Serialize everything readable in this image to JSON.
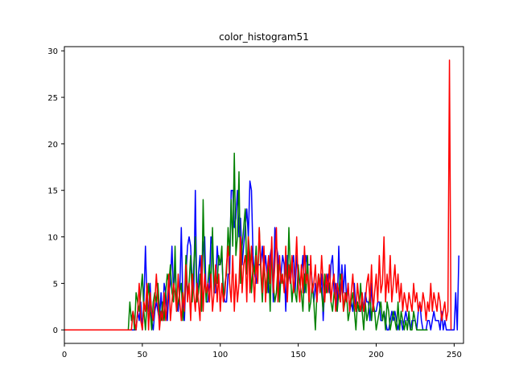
{
  "chart_data": {
    "type": "line",
    "title": "color_histogram51",
    "xlabel": "",
    "ylabel": "",
    "xlim": [
      0,
      256
    ],
    "ylim": [
      -1.45,
      30.45
    ],
    "xticks": [
      0,
      50,
      100,
      150,
      200,
      250
    ],
    "yticks": [
      0,
      5,
      10,
      15,
      20,
      25,
      30
    ],
    "grid": false,
    "legend": "none",
    "x_start": 0,
    "series": [
      {
        "color": "#0000ff",
        "values": [
          0,
          0,
          0,
          0,
          0,
          0,
          0,
          0,
          0,
          0,
          0,
          0,
          0,
          0,
          0,
          0,
          0,
          0,
          0,
          0,
          0,
          0,
          0,
          0,
          0,
          0,
          0,
          0,
          0,
          0,
          0,
          0,
          0,
          0,
          0,
          0,
          0,
          0,
          0,
          0,
          0,
          0,
          0,
          0,
          0,
          0,
          0,
          2,
          1,
          3,
          0,
          3,
          9,
          3,
          2,
          5,
          1,
          0,
          2,
          3,
          2,
          1,
          4,
          1,
          5,
          4,
          1,
          4,
          5,
          9,
          4,
          7,
          3,
          2,
          4,
          11,
          3,
          1,
          6,
          9,
          10,
          9,
          5,
          4,
          15,
          3,
          6,
          8,
          4,
          9,
          10,
          3,
          3,
          5,
          10,
          9,
          4,
          4,
          9,
          7,
          7,
          8,
          4,
          3,
          3,
          6,
          6,
          15,
          15,
          11,
          12,
          15,
          10,
          12,
          7,
          9,
          11,
          13,
          10,
          16,
          15,
          8,
          6,
          5,
          7,
          7,
          7,
          9,
          6,
          8,
          6,
          4,
          8,
          9,
          3,
          11,
          9,
          8,
          4,
          6,
          8,
          7,
          2,
          8,
          6,
          5,
          7,
          8,
          4,
          8,
          6,
          5,
          6,
          8,
          4,
          8,
          7,
          7,
          7,
          5,
          3,
          5,
          3,
          6,
          4,
          6,
          1,
          5,
          4,
          6,
          4,
          7,
          8,
          4,
          5,
          2,
          9,
          3,
          7,
          4,
          7,
          3,
          5,
          2,
          3,
          2,
          5,
          2,
          3,
          2,
          2,
          3,
          2,
          4,
          3,
          3,
          1,
          5,
          2,
          2,
          2,
          3,
          3,
          1,
          1,
          2,
          1,
          0,
          0,
          1,
          2,
          1,
          2,
          1,
          0,
          1,
          1,
          0,
          1,
          2,
          1,
          1,
          0,
          1,
          1,
          1,
          0,
          2,
          3,
          1,
          0,
          0,
          0,
          1,
          1,
          0,
          1,
          2,
          1,
          1,
          1,
          0,
          2,
          0,
          1,
          0,
          0,
          0,
          0,
          0,
          0,
          4,
          0,
          8
        ]
      },
      {
        "color": "#008000",
        "values": [
          0,
          0,
          0,
          0,
          0,
          0,
          0,
          0,
          0,
          0,
          0,
          0,
          0,
          0,
          0,
          0,
          0,
          0,
          0,
          0,
          0,
          0,
          0,
          0,
          0,
          0,
          0,
          0,
          0,
          0,
          0,
          0,
          0,
          0,
          0,
          0,
          0,
          0,
          0,
          0,
          0,
          0,
          3,
          1,
          2,
          0,
          4,
          3,
          2,
          4,
          6,
          2,
          0,
          3,
          5,
          2,
          0,
          3,
          4,
          3,
          5,
          2,
          1,
          3,
          1,
          4,
          6,
          5,
          7,
          4,
          3,
          9,
          2,
          3,
          4,
          5,
          1,
          3,
          8,
          4,
          5,
          8,
          3,
          7,
          10,
          3,
          4,
          6,
          2,
          14,
          6,
          3,
          5,
          7,
          5,
          11,
          4,
          6,
          5,
          8,
          7,
          9,
          3,
          5,
          6,
          11,
          8,
          14,
          9,
          19,
          8,
          10,
          17,
          5,
          9,
          11,
          13,
          6,
          10,
          8,
          4,
          7,
          6,
          9,
          5,
          11,
          6,
          3,
          7,
          5,
          4,
          7,
          2,
          9,
          5,
          3,
          4,
          7,
          3,
          6,
          5,
          5,
          7,
          4,
          11,
          6,
          3,
          5,
          4,
          3,
          7,
          5,
          4,
          2,
          6,
          4,
          8,
          2,
          3,
          5,
          3,
          0,
          4,
          6,
          5,
          4,
          2,
          6,
          4,
          5,
          5,
          3,
          2,
          4,
          3,
          2,
          4,
          6,
          5,
          2,
          3,
          4,
          1,
          2,
          3,
          4,
          2,
          0,
          3,
          2,
          5,
          2,
          0,
          3,
          1,
          2,
          4,
          1,
          3,
          2,
          0,
          1,
          2,
          3,
          1,
          2,
          0,
          3,
          2,
          0,
          1,
          2,
          1,
          0,
          3,
          0,
          2,
          1,
          0,
          1,
          0,
          2,
          0,
          0,
          2,
          1,
          0,
          0,
          0,
          0,
          0,
          0,
          0,
          0
        ]
      },
      {
        "color": "#ff0000",
        "values": [
          0,
          0,
          0,
          0,
          0,
          0,
          0,
          0,
          0,
          0,
          0,
          0,
          0,
          0,
          0,
          0,
          0,
          0,
          0,
          0,
          0,
          0,
          0,
          0,
          0,
          0,
          0,
          0,
          0,
          0,
          0,
          0,
          0,
          0,
          0,
          0,
          0,
          0,
          0,
          0,
          0,
          0,
          0,
          0,
          2,
          1,
          0,
          2,
          5,
          1,
          0,
          3,
          2,
          5,
          0,
          4,
          2,
          1,
          3,
          6,
          3,
          0,
          2,
          1,
          4,
          1,
          3,
          6,
          1,
          3,
          5,
          4,
          2,
          6,
          3,
          1,
          4,
          2,
          7,
          3,
          5,
          1,
          6,
          4,
          2,
          5,
          3,
          1,
          8,
          2,
          6,
          4,
          5,
          3,
          6,
          2,
          4,
          7,
          3,
          6,
          2,
          5,
          3,
          4,
          7,
          9,
          5,
          3,
          8,
          2,
          6,
          3,
          5,
          10,
          4,
          7,
          8,
          3,
          10,
          4,
          9,
          6,
          3,
          8,
          5,
          11,
          7,
          4,
          9,
          3,
          6,
          8,
          5,
          10,
          4,
          7,
          11,
          3,
          8,
          5,
          6,
          4,
          9,
          3,
          7,
          5,
          8,
          4,
          6,
          10,
          5,
          3,
          7,
          4,
          9,
          5,
          6,
          3,
          8,
          4,
          5,
          7,
          3,
          6,
          4,
          8,
          5,
          3,
          6,
          4,
          7,
          3,
          5,
          6,
          2,
          5,
          4,
          3,
          6,
          2,
          4,
          3,
          5,
          2,
          4,
          6,
          3,
          2,
          5,
          3,
          2,
          4,
          2,
          3,
          5,
          6,
          3,
          7,
          2,
          4,
          6,
          3,
          8,
          4,
          5,
          10,
          3,
          6,
          4,
          8,
          3,
          5,
          7,
          4,
          6,
          3,
          5,
          2,
          4,
          3,
          2,
          4,
          3,
          2,
          5,
          3,
          4,
          2,
          3,
          2,
          4,
          3,
          1,
          3,
          2,
          5,
          2,
          4,
          3,
          2,
          4,
          3,
          1,
          2,
          3,
          1,
          2,
          29,
          0
        ]
      }
    ]
  }
}
